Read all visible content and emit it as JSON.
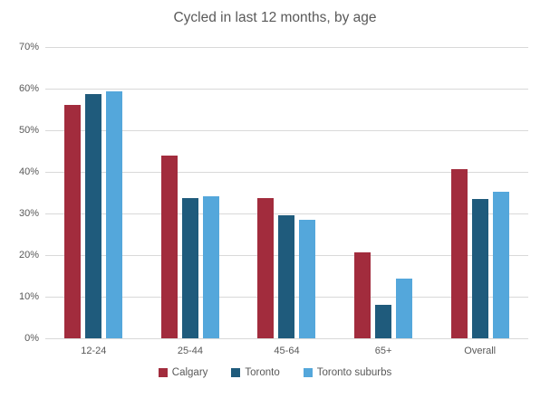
{
  "chart_data": {
    "type": "bar",
    "title": "Cycled in last 12 months, by age",
    "categories": [
      "12-24",
      "25-44",
      "45-64",
      "65+",
      "Overall"
    ],
    "series": [
      {
        "name": "Calgary",
        "color": "#a22c3d",
        "values": [
          56.0,
          44.0,
          33.8,
          20.6,
          40.6
        ]
      },
      {
        "name": "Toronto",
        "color": "#1f5b7c",
        "values": [
          58.6,
          33.8,
          29.5,
          8.0,
          33.4
        ]
      },
      {
        "name": "Toronto suburbs",
        "color": "#54a7db",
        "values": [
          59.3,
          34.1,
          28.4,
          14.3,
          35.3
        ]
      }
    ],
    "xlabel": "",
    "ylabel": "",
    "ylim": [
      0,
      70
    ],
    "ytick_step": 10,
    "ytick_suffix": "%",
    "grid": true,
    "legend_position": "bottom",
    "colors": {
      "text": "#595959",
      "gridline": "#d9d9d9",
      "background": "#ffffff"
    }
  }
}
